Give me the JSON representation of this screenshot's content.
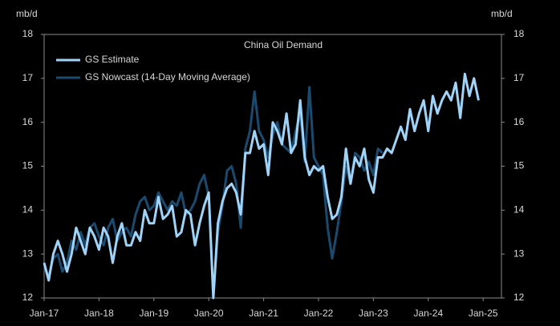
{
  "chart_data": {
    "type": "line",
    "title": "China Oil Demand",
    "y_label": "mb/d",
    "y2_label": "mb/d",
    "x": [
      "2017-01",
      "2017-02",
      "2017-03",
      "2017-04",
      "2017-05",
      "2017-06",
      "2017-07",
      "2017-08",
      "2017-09",
      "2017-10",
      "2017-11",
      "2017-12",
      "2018-01",
      "2018-02",
      "2018-03",
      "2018-04",
      "2018-05",
      "2018-06",
      "2018-07",
      "2018-08",
      "2018-09",
      "2018-10",
      "2018-11",
      "2018-12",
      "2019-01",
      "2019-02",
      "2019-03",
      "2019-04",
      "2019-05",
      "2019-06",
      "2019-07",
      "2019-08",
      "2019-09",
      "2019-10",
      "2019-11",
      "2019-12",
      "2020-01",
      "2020-02",
      "2020-03",
      "2020-04",
      "2020-05",
      "2020-06",
      "2020-07",
      "2020-08",
      "2020-09",
      "2020-10",
      "2020-11",
      "2020-12",
      "2021-01",
      "2021-02",
      "2021-03",
      "2021-04",
      "2021-05",
      "2021-06",
      "2021-07",
      "2021-08",
      "2021-09",
      "2021-10",
      "2021-11",
      "2021-12",
      "2022-01",
      "2022-02",
      "2022-03",
      "2022-04",
      "2022-05",
      "2022-06",
      "2022-07",
      "2022-08",
      "2022-09",
      "2022-10",
      "2022-11",
      "2022-12",
      "2023-01",
      "2023-02",
      "2023-03",
      "2023-04",
      "2023-05",
      "2023-06",
      "2023-07",
      "2023-08",
      "2023-09",
      "2023-10",
      "2023-11",
      "2023-12",
      "2024-01",
      "2024-02",
      "2024-03",
      "2024-04",
      "2024-05",
      "2024-06",
      "2024-07",
      "2024-08",
      "2024-09",
      "2024-10",
      "2024-11",
      "2024-12"
    ],
    "series": [
      {
        "name": "GS Estimate",
        "color": "#9fd3f7",
        "values": [
          12.8,
          12.4,
          13.0,
          13.3,
          13.0,
          12.6,
          13.0,
          13.6,
          13.3,
          13.0,
          13.6,
          13.4,
          13.1,
          13.6,
          13.4,
          12.8,
          13.4,
          13.7,
          13.2,
          13.2,
          13.5,
          13.3,
          14.0,
          13.7,
          13.7,
          14.3,
          13.8,
          13.9,
          14.1,
          13.4,
          13.5,
          14.0,
          13.9,
          13.2,
          13.7,
          14.1,
          14.4,
          12.0,
          13.7,
          14.2,
          14.5,
          14.6,
          14.4,
          13.9,
          15.3,
          15.3,
          15.8,
          15.4,
          15.5,
          14.8,
          16.0,
          15.8,
          15.5,
          16.2,
          15.3,
          15.5,
          16.5,
          15.2,
          14.8,
          15.0,
          14.9,
          15.0,
          14.3,
          13.8,
          13.9,
          14.3,
          15.4,
          14.6,
          15.2,
          15.0,
          15.4,
          14.7,
          14.4,
          15.2,
          15.2,
          15.4,
          15.3,
          15.6,
          15.9,
          15.6,
          16.3,
          15.8,
          16.2,
          16.5,
          15.8,
          16.6,
          16.2,
          16.5,
          16.7,
          16.5,
          16.9,
          16.1,
          17.1,
          16.6,
          17.0,
          16.5
        ]
      },
      {
        "name": "GS Nowcast (14-Day Moving Average)",
        "color": "#1c4a6e",
        "values": [
          12.7,
          12.5,
          12.9,
          13.0,
          12.6,
          12.8,
          13.3,
          13.1,
          13.5,
          13.2,
          13.6,
          13.7,
          13.4,
          13.2,
          13.6,
          13.8,
          13.3,
          13.5,
          13.6,
          13.4,
          13.9,
          14.2,
          14.3,
          14.0,
          14.1,
          14.4,
          14.2,
          14.0,
          14.2,
          14.1,
          14.4,
          13.9,
          14.0,
          14.2,
          14.6,
          14.8,
          14.3,
          12.0,
          13.5,
          14.1,
          14.9,
          15.0,
          14.6,
          13.6,
          15.4,
          15.8,
          16.7,
          15.8,
          15.6,
          15.2,
          15.7,
          16.0,
          15.5,
          15.4,
          15.3,
          15.8,
          16.2,
          15.1,
          16.8,
          15.2,
          15.0,
          14.8,
          13.6,
          12.9,
          13.5,
          14.2,
          15.0,
          14.6,
          15.3,
          15.2,
          14.9,
          15.1,
          14.8,
          15.4,
          15.3,
          null,
          null,
          null,
          null,
          null,
          null,
          null,
          null,
          null,
          null,
          null,
          null,
          null,
          null,
          null,
          null,
          null,
          null,
          null,
          null,
          null
        ]
      }
    ],
    "xlim": [
      "2017-01",
      "2025-05"
    ],
    "xticks": [
      {
        "value": "2017-01",
        "label": "Jan-17"
      },
      {
        "value": "2018-01",
        "label": "Jan-18"
      },
      {
        "value": "2019-01",
        "label": "Jan-19"
      },
      {
        "value": "2020-01",
        "label": "Jan-20"
      },
      {
        "value": "2021-01",
        "label": "Jan-21"
      },
      {
        "value": "2022-01",
        "label": "Jan-22"
      },
      {
        "value": "2023-01",
        "label": "Jan-23"
      },
      {
        "value": "2024-01",
        "label": "Jan-24"
      },
      {
        "value": "2025-01",
        "label": "Jan-25"
      }
    ],
    "ylim": [
      12,
      18
    ],
    "yticks": [
      12,
      13,
      14,
      15,
      16,
      17,
      18
    ],
    "y2lim": [
      12,
      18
    ],
    "y2ticks": [
      12,
      13,
      14,
      15,
      16,
      17,
      18
    ],
    "legend": "top-left"
  }
}
